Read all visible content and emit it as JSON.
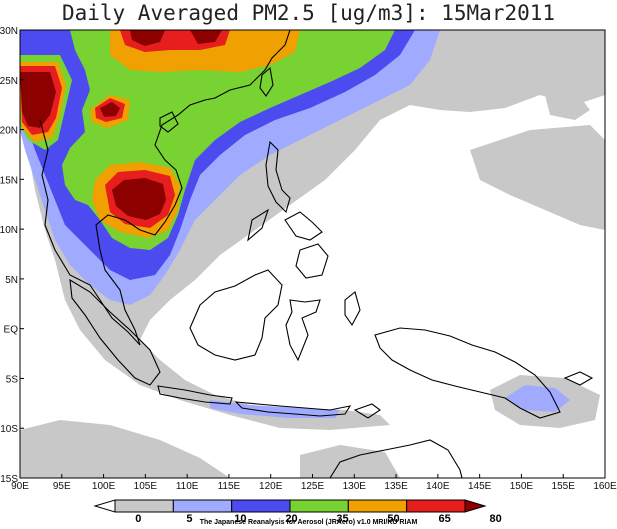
{
  "title": "Daily Averaged PM2.5 [ug/m3]: 15Mar2011",
  "credit": "The Japanese Reanalysis for Aerosol (JRAero) v1.0 MRI/KU RIAM",
  "map": {
    "lon_range": [
      90,
      160
    ],
    "lat_range": [
      -15,
      30
    ],
    "lon_ticks": [
      "90E",
      "95E",
      "100E",
      "105E",
      "110E",
      "115E",
      "120E",
      "125E",
      "130E",
      "135E",
      "140E",
      "145E",
      "150E",
      "155E",
      "160E"
    ],
    "lat_ticks": [
      "15S",
      "10S",
      "5S",
      "EQ",
      "5N",
      "10N",
      "15N",
      "20N",
      "25N",
      "30N"
    ]
  },
  "colorbar": {
    "levels": [
      "0",
      "5",
      "10",
      "20",
      "35",
      "50",
      "65",
      "80"
    ],
    "colors": [
      "#ffffff",
      "#c8c8c8",
      "#a0aaff",
      "#4b4bf0",
      "#78d232",
      "#f0a000",
      "#e61e1e",
      "#8c0000"
    ]
  }
}
